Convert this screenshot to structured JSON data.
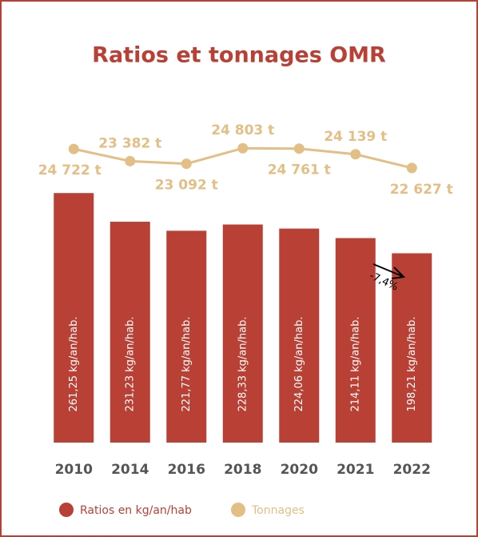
{
  "chart_data": {
    "type": "bar",
    "title": "Ratios et tonnages OMR",
    "categories": [
      "2010",
      "2014",
      "2016",
      "2018",
      "2020",
      "2021",
      "2022"
    ],
    "ylim": [
      0,
      300
    ],
    "y2lim": [
      22000,
      25000
    ],
    "series": [
      {
        "name": "Ratios en kg/an/hab",
        "color": "#b94035",
        "values": [
          261.25,
          231.23,
          221.77,
          228.33,
          224.06,
          214.11,
          198.21
        ],
        "value_labels": [
          "261,25 kg/an/hab.",
          "231,23 kg/an/hab.",
          "221,77 kg/an/hab.",
          "228,33 kg/an/hab.",
          "224,06 kg/an/hab.",
          "214,11 kg/an/hab.",
          "198,21 kg/an/hab."
        ]
      },
      {
        "name": "Tonnages",
        "color": "#e3bf86",
        "axis": "y2",
        "type": "line",
        "values": [
          24722,
          23382,
          23092,
          24803,
          24761,
          24139,
          22627
        ],
        "value_labels": [
          "24 722 t",
          "23 382 t",
          "23 092 t",
          "24 803 t",
          "24 761 t",
          "24 139 t",
          "22 627 t"
        ]
      }
    ],
    "annotation": "-7,4%"
  }
}
